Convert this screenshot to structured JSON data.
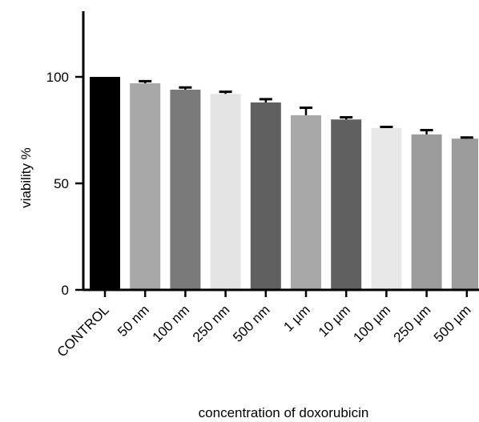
{
  "chart_data": {
    "type": "bar",
    "title": "",
    "xlabel": "concentration of doxorubicin",
    "ylabel": "viability %",
    "ylim": [
      0,
      130
    ],
    "yticks": [
      0,
      50,
      100
    ],
    "grid": false,
    "categories": [
      "CONTROL",
      "50 nm",
      "100 nm",
      "250 nm",
      "500 nm",
      "1 µm",
      "10 µm",
      "100 µm",
      "250 µm",
      "500 µm"
    ],
    "values": [
      100,
      97,
      94,
      92,
      88,
      82,
      80,
      76,
      73,
      71
    ],
    "errors": [
      0,
      1,
      1,
      1,
      1.5,
      3.5,
      1,
      0.5,
      2,
      0.5
    ],
    "bar_colors": [
      "#000000",
      "#a8a8a8",
      "#7a7a7a",
      "#e4e4e4",
      "#606060",
      "#a8a8a8",
      "#606060",
      "#e8e8e8",
      "#9c9c9c",
      "#9c9c9c"
    ]
  }
}
